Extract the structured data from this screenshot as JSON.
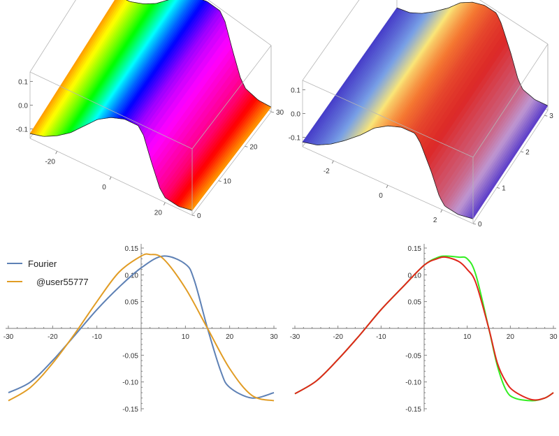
{
  "chart_data": [
    {
      "type": "surface",
      "colorscheme": "hue",
      "x_range": [
        -30,
        30
      ],
      "y_range": [
        0,
        30
      ],
      "z_range": [
        -0.14,
        0.14
      ],
      "x_ticks": [
        -20,
        0,
        20
      ],
      "y_ticks": [
        0,
        10,
        20,
        30
      ],
      "z_ticks": [
        -0.1,
        0.0,
        0.1
      ],
      "x_tick_labels": [
        "-20",
        "0",
        "20"
      ],
      "y_tick_labels": [
        "0",
        "10",
        "20",
        "30"
      ],
      "z_tick_labels": [
        "-0.1",
        "0.0",
        "0.1"
      ],
      "profile_x": [
        -30,
        -25,
        -20,
        -15,
        -10,
        -5,
        0,
        5,
        10,
        12,
        15,
        18,
        20,
        25,
        30
      ],
      "profile_z": [
        -0.12,
        -0.105,
        -0.075,
        -0.035,
        0.02,
        0.075,
        0.11,
        0.13,
        0.13,
        0.1,
        0.0,
        -0.09,
        -0.12,
        -0.13,
        -0.12
      ]
    },
    {
      "type": "surface",
      "colorscheme": "rainbow",
      "x_range": [
        -3.14,
        3.14
      ],
      "y_range": [
        0,
        3.14
      ],
      "z_range": [
        -0.14,
        0.14
      ],
      "x_ticks": [
        -2,
        0,
        2
      ],
      "y_ticks": [
        0,
        1,
        2,
        3
      ],
      "z_ticks": [
        -0.1,
        0.0,
        0.1
      ],
      "x_tick_labels": [
        "-2",
        "0",
        "2"
      ],
      "y_tick_labels": [
        "0",
        "1",
        "2",
        "3"
      ],
      "z_tick_labels": [
        "-0.1",
        "0.0",
        "0.1"
      ],
      "profile_x": [
        -3.14,
        -2.6,
        -2.1,
        -1.6,
        -1.0,
        -0.5,
        0.0,
        0.5,
        1.0,
        1.2,
        1.6,
        1.9,
        2.1,
        2.6,
        3.14
      ],
      "profile_z": [
        -0.12,
        -0.105,
        -0.075,
        -0.035,
        0.02,
        0.075,
        0.11,
        0.13,
        0.13,
        0.1,
        0.0,
        -0.09,
        -0.12,
        -0.13,
        -0.12
      ]
    },
    {
      "type": "line",
      "xlim": [
        -30,
        30
      ],
      "ylim": [
        -0.15,
        0.15
      ],
      "x_ticks": [
        -30,
        -20,
        -10,
        10,
        20,
        30
      ],
      "x_tick_labels": [
        "-30",
        "-20",
        "-10",
        "10",
        "20",
        "30"
      ],
      "y_ticks": [
        -0.15,
        -0.1,
        -0.05,
        0.05,
        0.1,
        0.15
      ],
      "y_tick_labels": [
        "-0.15",
        "-0.10",
        "-0.05",
        "0.05",
        "0.10",
        "0.15"
      ],
      "legend_position": "top-left",
      "series": [
        {
          "name": "Fourier",
          "color": "#5E81B5",
          "x": [
            -30,
            -25,
            -20,
            -15,
            -10,
            -5,
            0,
            5,
            10,
            12,
            15,
            18,
            20,
            25,
            30
          ],
          "y": [
            -0.12,
            -0.1,
            -0.06,
            -0.013,
            0.035,
            0.077,
            0.113,
            0.135,
            0.12,
            0.09,
            0.0,
            -0.08,
            -0.11,
            -0.13,
            -0.12
          ]
        },
        {
          "name": "@user55777",
          "color": "#E19C24",
          "x": [
            -30,
            -25,
            -20,
            -15,
            -10,
            -5,
            0,
            2,
            5,
            10,
            15,
            20,
            25,
            30
          ],
          "y": [
            -0.135,
            -0.11,
            -0.065,
            -0.01,
            0.05,
            0.105,
            0.135,
            0.138,
            0.13,
            0.075,
            0.0,
            -0.075,
            -0.125,
            -0.135
          ]
        }
      ]
    },
    {
      "type": "line",
      "xlim": [
        -30,
        30
      ],
      "ylim": [
        -0.15,
        0.15
      ],
      "x_ticks": [
        -30,
        -20,
        -10,
        10,
        20,
        30
      ],
      "x_tick_labels": [
        "-30",
        "-20",
        "-10",
        "10",
        "20",
        "30"
      ],
      "y_ticks": [
        -0.15,
        -0.1,
        -0.05,
        0.05,
        0.1,
        0.15
      ],
      "y_tick_labels": [
        "-0.15",
        "-0.10",
        "-0.05",
        "0.05",
        "0.10",
        "0.15"
      ],
      "series": [
        {
          "color": "#33EE22",
          "x": [
            -30,
            -25,
            -20,
            -15,
            -10,
            -5,
            0,
            3,
            5,
            8,
            10,
            12,
            15,
            17,
            19,
            21,
            25,
            28,
            30
          ],
          "y": [
            -0.122,
            -0.098,
            -0.058,
            -0.013,
            0.035,
            0.077,
            0.118,
            0.132,
            0.135,
            0.133,
            0.13,
            0.1,
            0.0,
            -0.07,
            -0.115,
            -0.13,
            -0.135,
            -0.13,
            -0.12
          ]
        },
        {
          "color": "#E0261B",
          "x": [
            -30,
            -25,
            -20,
            -15,
            -10,
            -5,
            0,
            3,
            5,
            8,
            10,
            12,
            15,
            17,
            19,
            21,
            25,
            28,
            30
          ],
          "y": [
            -0.122,
            -0.098,
            -0.058,
            -0.013,
            0.035,
            0.077,
            0.118,
            0.13,
            0.133,
            0.125,
            0.11,
            0.085,
            0.0,
            -0.065,
            -0.1,
            -0.118,
            -0.133,
            -0.13,
            -0.12
          ]
        }
      ]
    }
  ]
}
